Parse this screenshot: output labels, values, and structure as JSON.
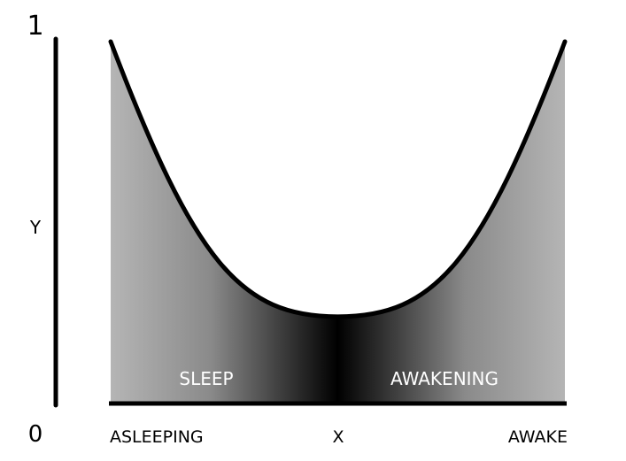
{
  "diagram": {
    "y_axis": {
      "label": "Y",
      "top_value": "1",
      "bottom_value": "0"
    },
    "x_axis": {
      "left_label": "ASLEEPING",
      "center_label": "X",
      "right_label": "AWAKE"
    },
    "regions": {
      "left_label": "SLEEP",
      "right_label": "AWAKENING"
    },
    "curve": {
      "shape": "u-shaped",
      "left_end_y": 1.0,
      "minimum_y": 0.24,
      "right_end_y": 1.0
    },
    "colors": {
      "edge_fill": "#b5b5b5",
      "center_fill": "#000000",
      "curve_stroke": "#000000",
      "label_text": "#ffffff",
      "axis_text": "#000000"
    }
  }
}
